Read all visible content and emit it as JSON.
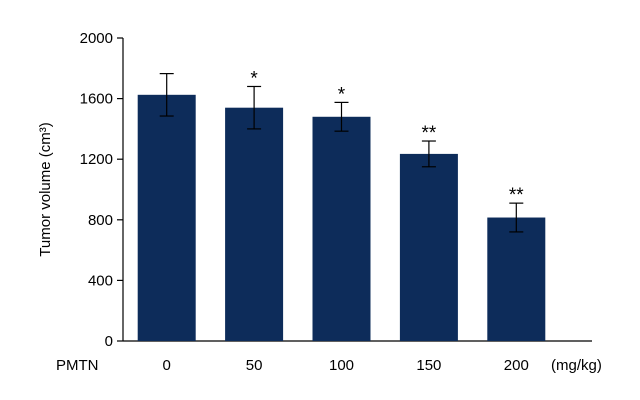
{
  "chart_data": {
    "type": "bar",
    "ylabel": "Tumor volume (cm³)",
    "xlabel": "PMTN",
    "x_unit": "(mg/kg)",
    "categories": [
      "0",
      "50",
      "100",
      "150",
      "200"
    ],
    "values": [
      1625,
      1540,
      1480,
      1235,
      815
    ],
    "errors": [
      140,
      140,
      95,
      85,
      95
    ],
    "significance": [
      "",
      "*",
      "*",
      "**",
      "**"
    ],
    "ylim": [
      0,
      2000
    ],
    "yticks": [
      0,
      400,
      800,
      1200,
      1600,
      2000
    ],
    "bar_color": "#0d2c5a",
    "grid": false,
    "legend": "none"
  }
}
